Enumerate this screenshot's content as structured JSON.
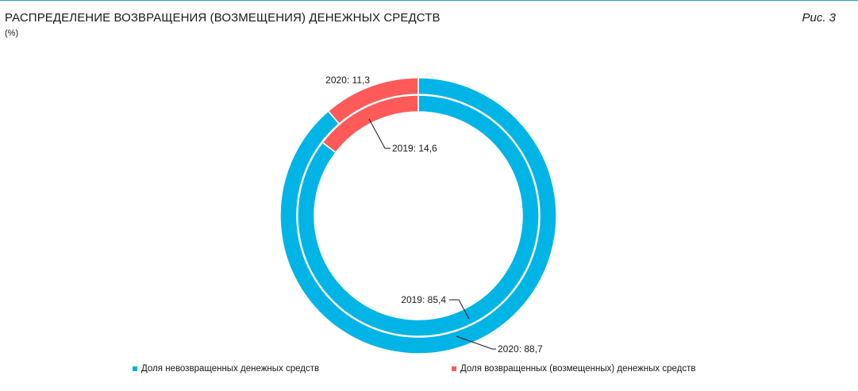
{
  "header": {
    "title": "РАСПРЕДЕЛЕНИЕ ВОЗВРАЩЕНИЯ (ВОЗМЕЩЕНИЯ) ДЕНЕЖНЫХ СРЕДСТВ",
    "figure_label": "Рис. 3",
    "unit": "(%)"
  },
  "colors": {
    "not_returned": "#00b4e6",
    "returned": "#ff5a5a",
    "rule": "#1aa8b8"
  },
  "chart_data": {
    "type": "pie",
    "variant": "nested-donut",
    "title": "РАСПРЕДЕЛЕНИЕ ВОЗВРАЩЕНИЯ (ВОЗМЕЩЕНИЯ) ДЕНЕЖНЫХ СРЕДСТВ",
    "unit": "(%)",
    "categories": [
      "Доля невозвращенных денежных средств",
      "Доля возвращенных (возмещенных) денежных средств"
    ],
    "series": [
      {
        "name": "2020",
        "ring": "outer",
        "values": [
          88.7,
          11.3
        ],
        "labels": [
          "2020: 88,7",
          "2020: 11,3"
        ]
      },
      {
        "name": "2019",
        "ring": "inner",
        "values": [
          85.4,
          14.6
        ],
        "labels": [
          "2019: 85,4",
          "2019: 14,6"
        ]
      }
    ],
    "legend_position": "bottom"
  }
}
